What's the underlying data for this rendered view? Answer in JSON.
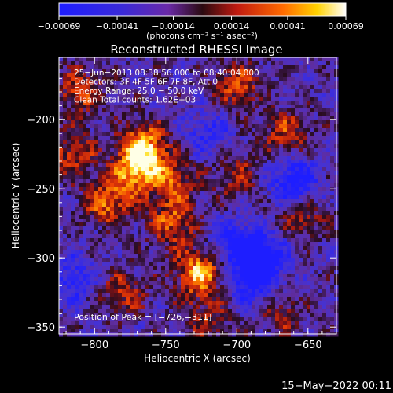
{
  "chart_data": {
    "type": "heatmap",
    "title": "Reconstructed RHESSI Image",
    "xlabel": "Heliocentric X (arcsec)",
    "ylabel": "Heliocentric Y (arcsec)",
    "xlim": [
      -825,
      -630
    ],
    "ylim": [
      -355,
      -155
    ],
    "x_ticks": [
      -800,
      -750,
      -700,
      -650
    ],
    "y_ticks": [
      -350,
      -300,
      -250,
      -200
    ],
    "x_tick_labels": [
      "−800",
      "−750",
      "−700",
      "−650"
    ],
    "y_tick_labels": [
      "−350",
      "−300",
      "−250",
      "−200"
    ],
    "colorbar": {
      "range": [
        -0.00069,
        0.00069
      ],
      "ticks": [
        -0.00069,
        -0.00041,
        -0.00014,
        0.00014,
        0.00041,
        0.00069
      ],
      "tick_labels": [
        "−0.00069",
        "−0.00041",
        "−0.00014",
        "0.00014",
        "0.00041",
        "0.00069"
      ],
      "unit_label": "(photons cm⁻² s⁻¹ asec⁻²)"
    },
    "annotation_lines": [
      "25−Jun−2013 08:38:56.000 to 08:40:04.000",
      "Detectors: 3F 4F 5F 6F 7F 8F, Att 0",
      "Energy Range: 25.0 − 50.0 keV",
      "Clean    Total counts: 1.62E+03"
    ],
    "peak_label": "Position of Peak = [−726,−311]",
    "peak": [
      -726,
      -311
    ],
    "bright_regions": [
      {
        "x": -770,
        "y": -235,
        "level": 0.9
      },
      {
        "x": -765,
        "y": -218,
        "level": 0.8
      },
      {
        "x": -790,
        "y": -260,
        "level": 0.75
      },
      {
        "x": -745,
        "y": -245,
        "level": 0.6
      },
      {
        "x": -745,
        "y": -275,
        "level": 0.65
      },
      {
        "x": -726,
        "y": -311,
        "level": 1.0
      },
      {
        "x": -815,
        "y": -225,
        "level": 0.55
      },
      {
        "x": -810,
        "y": -180,
        "level": 0.6
      },
      {
        "x": -700,
        "y": -175,
        "level": 0.6
      },
      {
        "x": -665,
        "y": -210,
        "level": 0.55
      },
      {
        "x": -700,
        "y": -240,
        "level": 0.45
      },
      {
        "x": -655,
        "y": -270,
        "level": 0.5
      },
      {
        "x": -780,
        "y": -325,
        "level": 0.5
      },
      {
        "x": -720,
        "y": -345,
        "level": 0.45
      },
      {
        "x": -670,
        "y": -340,
        "level": 0.4
      }
    ],
    "dim_regions": [
      {
        "x": -660,
        "y": -245,
        "level": -0.8
      },
      {
        "x": -700,
        "y": -290,
        "level": -0.7
      },
      {
        "x": -680,
        "y": -300,
        "level": -0.75
      },
      {
        "x": -690,
        "y": -320,
        "level": -0.6
      },
      {
        "x": -815,
        "y": -315,
        "level": -0.5
      },
      {
        "x": -720,
        "y": -210,
        "level": -0.45
      }
    ],
    "grid": false
  },
  "footer": {
    "timestamp": "15−May−2022 00:11"
  }
}
